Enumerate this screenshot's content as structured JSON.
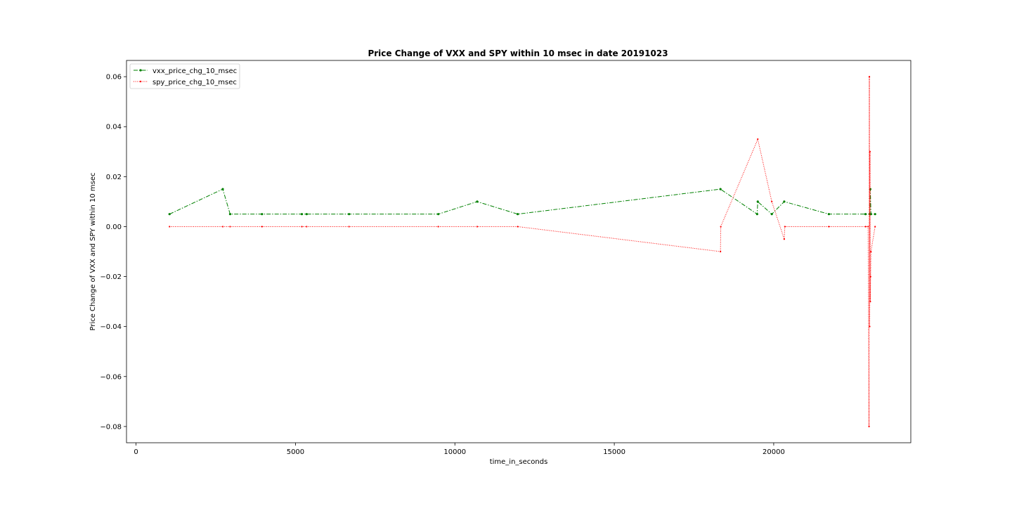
{
  "chart_data": {
    "type": "line",
    "title": "Price Change of VXX and SPY within 10 msec in date  20191023",
    "xlabel": "time_in_seconds",
    "ylabel": "Price Change of VXX and SPY within 10 msec",
    "xlim": [
      -300,
      24300
    ],
    "ylim": [
      -0.0865,
      0.0665
    ],
    "x_ticks": [
      0,
      5000,
      10000,
      15000,
      20000
    ],
    "x_tick_labels": [
      "0",
      "5000",
      "10000",
      "15000",
      "20000"
    ],
    "y_ticks": [
      -0.08,
      -0.06,
      -0.04,
      -0.02,
      0.0,
      0.02,
      0.04,
      0.06
    ],
    "y_tick_labels": [
      "−0.08",
      "−0.06",
      "−0.04",
      "−0.02",
      "0.00",
      "0.02",
      "0.04",
      "0.06"
    ],
    "grid": false,
    "legend_position": "top-left",
    "series": [
      {
        "name": "vxx_price_chg_10_msec",
        "color": "#008000",
        "style": "dashdot",
        "x": [
          1050,
          2720,
          2950,
          3950,
          5200,
          5350,
          6680,
          9480,
          10700,
          11970,
          18330,
          19480,
          19500,
          19940,
          20330,
          21730,
          22880,
          23010,
          23030,
          23050,
          23180
        ],
        "y": [
          0.005,
          0.015,
          0.005,
          0.005,
          0.005,
          0.005,
          0.005,
          0.005,
          0.01,
          0.005,
          0.015,
          0.005,
          0.01,
          0.005,
          0.01,
          0.005,
          0.005,
          0.005,
          0.015,
          0.005,
          0.005
        ]
      },
      {
        "name": "spy_price_chg_10_msec",
        "color": "#ff0000",
        "style": "dotted",
        "x": [
          1050,
          2720,
          2950,
          3950,
          5200,
          5350,
          6680,
          9480,
          10700,
          11970,
          18330,
          18340,
          19500,
          19940,
          20330,
          20350,
          21730,
          22880,
          22960,
          22990,
          23000,
          23010,
          23020,
          23030,
          23040,
          23050,
          23180
        ],
        "y": [
          0.0,
          0.0,
          0.0,
          0.0,
          0.0,
          0.0,
          0.0,
          0.0,
          0.0,
          0.0,
          -0.01,
          0.0,
          0.035,
          0.01,
          -0.005,
          0.0,
          0.0,
          0.0,
          0.0,
          -0.08,
          0.06,
          -0.04,
          0.03,
          -0.03,
          -0.02,
          -0.01,
          0.0
        ]
      }
    ]
  }
}
